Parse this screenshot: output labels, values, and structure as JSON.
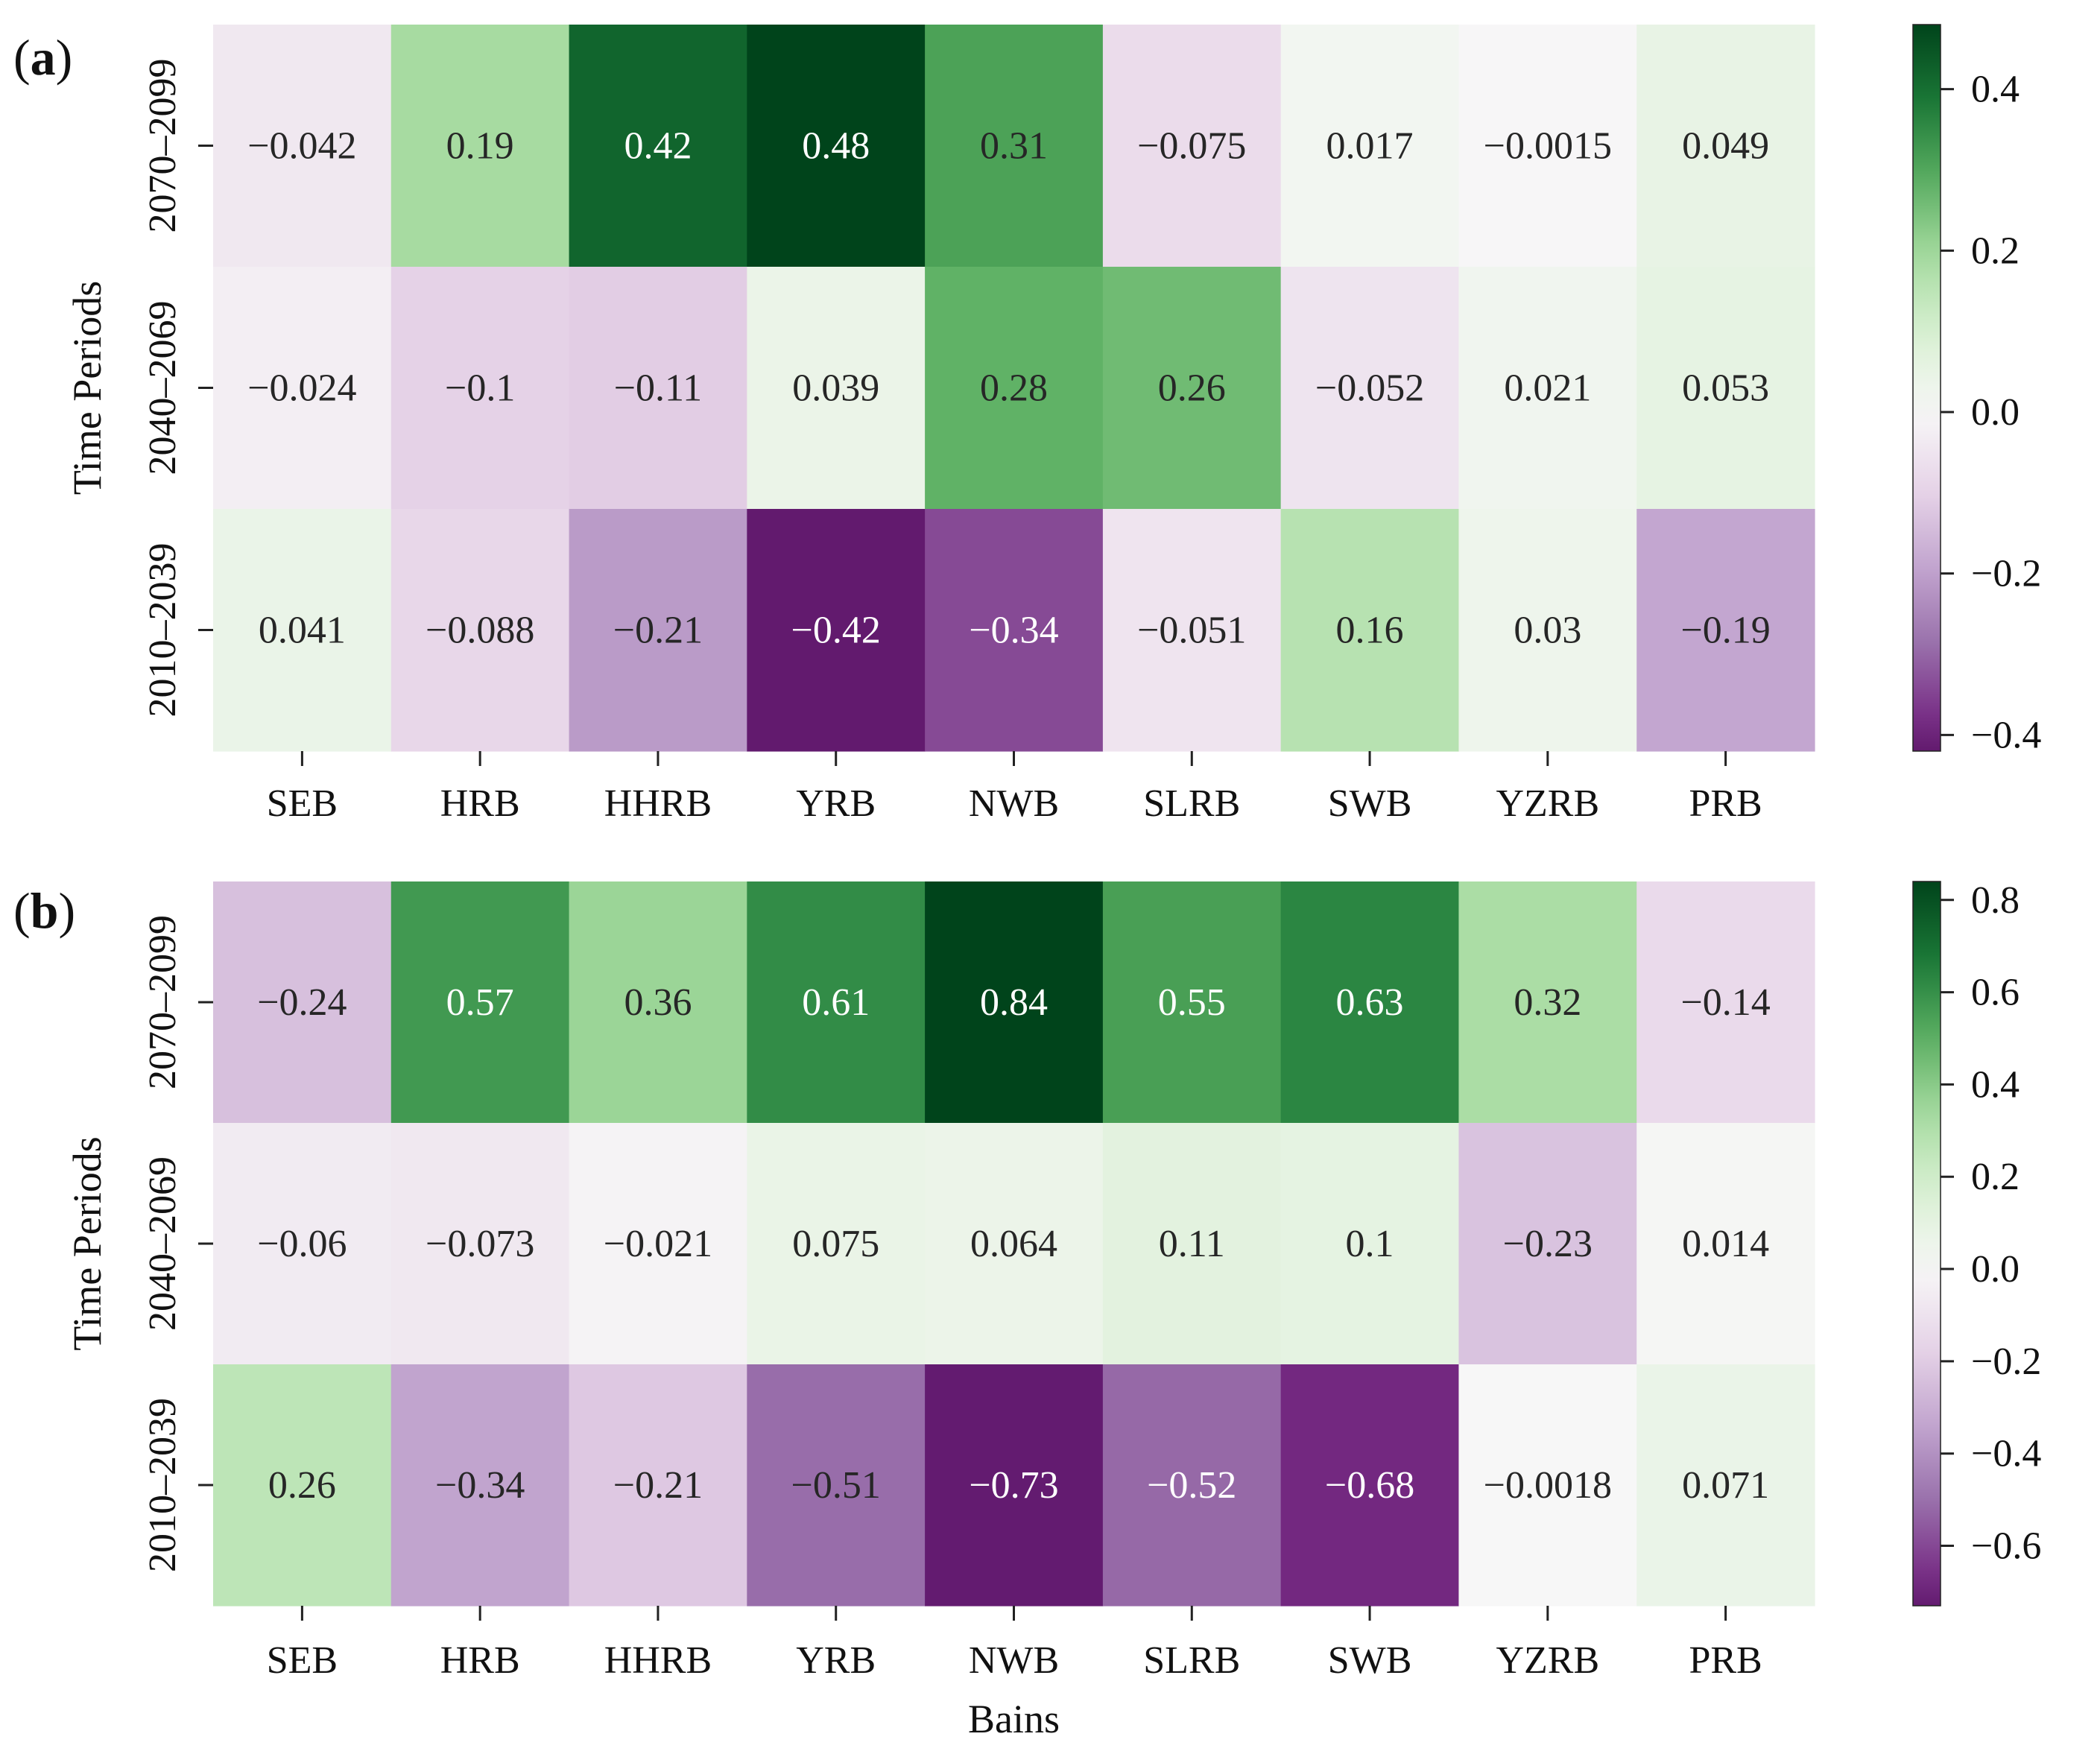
{
  "chart_data": [
    {
      "type": "heatmap",
      "panel_label": "(a)",
      "panel_letter": "a",
      "ylabel": "Time Periods",
      "xlabel": "",
      "categories": [
        "SEB",
        "HRB",
        "HHRB",
        "YRB",
        "NWB",
        "SLRB",
        "SWB",
        "YZRB",
        "PRB"
      ],
      "rows": [
        "2070–2099",
        "2040–2069",
        "2010–2039"
      ],
      "values": [
        [
          -0.042,
          0.19,
          0.42,
          0.48,
          0.31,
          -0.075,
          0.017,
          -0.0015,
          0.049
        ],
        [
          -0.024,
          -0.1,
          -0.11,
          0.039,
          0.28,
          0.26,
          -0.052,
          0.021,
          0.053
        ],
        [
          0.041,
          -0.088,
          -0.21,
          -0.42,
          -0.34,
          -0.051,
          0.16,
          0.03,
          -0.19
        ]
      ],
      "labels": [
        [
          "−0.042",
          "0.19",
          "0.42",
          "0.48",
          "0.31",
          "−0.075",
          "0.017",
          "−0.0015",
          "0.049"
        ],
        [
          "−0.024",
          "−0.1",
          "−0.11",
          "0.039",
          "0.28",
          "0.26",
          "−0.052",
          "0.021",
          "0.053"
        ],
        [
          "0.041",
          "−0.088",
          "−0.21",
          "−0.42",
          "−0.34",
          "−0.051",
          "0.16",
          "0.03",
          "−0.19"
        ]
      ],
      "colormap": "PRGn",
      "vmin": -0.42,
      "vmax": 0.48,
      "colorbar_ticks": [
        0.4,
        0.2,
        0.0,
        -0.2,
        -0.4
      ],
      "colorbar_tick_labels": [
        "0.4",
        "0.2",
        "0.0",
        "−0.2",
        "−0.4"
      ]
    },
    {
      "type": "heatmap",
      "panel_label": "(b)",
      "panel_letter": "b",
      "ylabel": "Time Periods",
      "xlabel": "Bains",
      "categories": [
        "SEB",
        "HRB",
        "HHRB",
        "YRB",
        "NWB",
        "SLRB",
        "SWB",
        "YZRB",
        "PRB"
      ],
      "rows": [
        "2070–2099",
        "2040–2069",
        "2010–2039"
      ],
      "values": [
        [
          -0.24,
          0.57,
          0.36,
          0.61,
          0.84,
          0.55,
          0.63,
          0.32,
          -0.14
        ],
        [
          -0.06,
          -0.073,
          -0.021,
          0.075,
          0.064,
          0.11,
          0.1,
          -0.23,
          0.014
        ],
        [
          0.26,
          -0.34,
          -0.21,
          -0.51,
          -0.73,
          -0.52,
          -0.68,
          -0.0018,
          0.071
        ]
      ],
      "labels": [
        [
          "−0.24",
          "0.57",
          "0.36",
          "0.61",
          "0.84",
          "0.55",
          "0.63",
          "0.32",
          "−0.14"
        ],
        [
          "−0.06",
          "−0.073",
          "−0.021",
          "0.075",
          "0.064",
          "0.11",
          "0.1",
          "−0.23",
          "0.014"
        ],
        [
          "0.26",
          "−0.34",
          "−0.21",
          "−0.51",
          "−0.73",
          "−0.52",
          "−0.68",
          "−0.0018",
          "0.071"
        ]
      ],
      "colormap": "PRGn",
      "vmin": -0.73,
      "vmax": 0.84,
      "colorbar_ticks": [
        0.8,
        0.6,
        0.4,
        0.2,
        0.0,
        -0.2,
        -0.4,
        -0.6
      ],
      "colorbar_tick_labels": [
        "0.8",
        "0.6",
        "0.4",
        "0.2",
        "0.0",
        "−0.2",
        "−0.4",
        "−0.6"
      ]
    }
  ]
}
